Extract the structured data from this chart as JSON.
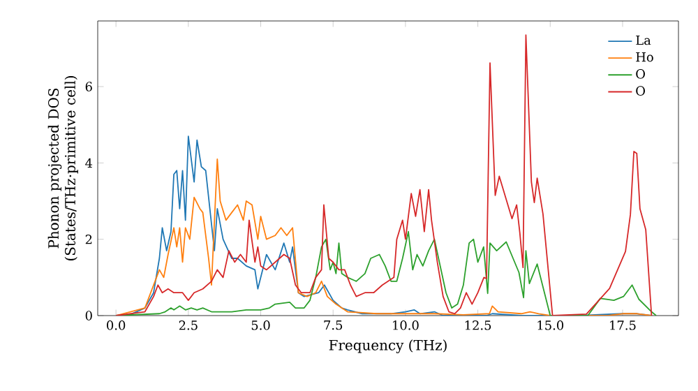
{
  "chart_data": {
    "type": "line",
    "xlabel": "Frequency (THz)",
    "ylabel": "Phonon projected DOS (States/THz·primitive cell)",
    "xlim": [
      -0.63,
      19.43
    ],
    "ylim": [
      0,
      7.72
    ],
    "xticks": [
      {
        "value": 0,
        "label": "0.0"
      },
      {
        "value": 2.5,
        "label": "2.5"
      },
      {
        "value": 5,
        "label": "5.0"
      },
      {
        "value": 7.5,
        "label": "7.5"
      },
      {
        "value": 10,
        "label": "10.0"
      },
      {
        "value": 12.5,
        "label": "12.5"
      },
      {
        "value": 15,
        "label": "15.0"
      },
      {
        "value": 17.5,
        "label": "17.5"
      }
    ],
    "yticks": [
      0,
      2,
      4,
      6
    ],
    "grid": false,
    "legend": "top right",
    "marker": "none",
    "line_style": "solid",
    "series": [
      {
        "name": "La",
        "color": "#1f77b4",
        "x": [
          0,
          0.5,
          1.0,
          1.3,
          1.5,
          1.6,
          1.75,
          1.9,
          2.0,
          2.1,
          2.2,
          2.3,
          2.4,
          2.5,
          2.7,
          2.8,
          2.95,
          3.1,
          3.4,
          3.5,
          3.7,
          4.0,
          4.2,
          4.5,
          4.8,
          4.9,
          5.2,
          5.5,
          5.8,
          6.0,
          6.1,
          6.2,
          6.3,
          6.5,
          7.0,
          7.2,
          7.5,
          7.8,
          8.0,
          8.5,
          9.5,
          10.0,
          10.3,
          10.5,
          11.0,
          11.3,
          12.8,
          13.0,
          14.0,
          16.0,
          17.5,
          18.0,
          18.5
        ],
        "values": [
          0,
          0.03,
          0.2,
          0.6,
          1.5,
          2.3,
          1.7,
          2.2,
          3.7,
          3.8,
          2.8,
          3.8,
          2.5,
          4.7,
          3.5,
          4.6,
          3.9,
          3.8,
          1.7,
          2.8,
          2.0,
          1.5,
          1.5,
          1.3,
          1.2,
          0.7,
          1.6,
          1.2,
          1.9,
          1.4,
          1.8,
          1.2,
          0.6,
          0.5,
          0.6,
          0.8,
          0.4,
          0.2,
          0.15,
          0.05,
          0.05,
          0.1,
          0.15,
          0.05,
          0.1,
          0,
          0,
          0.05,
          0,
          0,
          0.05,
          0.05,
          0
        ]
      },
      {
        "name": "Ho",
        "color": "#ff7f0e",
        "x": [
          0,
          1.0,
          1.3,
          1.5,
          1.65,
          1.8,
          2.0,
          2.1,
          2.2,
          2.3,
          2.4,
          2.55,
          2.7,
          2.9,
          3.0,
          3.2,
          3.3,
          3.5,
          3.6,
          3.8,
          4.0,
          4.2,
          4.4,
          4.5,
          4.7,
          4.9,
          5.0,
          5.2,
          5.5,
          5.7,
          5.9,
          6.1,
          6.3,
          6.6,
          6.9,
          7.1,
          7.3,
          7.6,
          8.0,
          9.0,
          10.0,
          11.0,
          12.0,
          12.9,
          13.0,
          13.2,
          14.0,
          14.3,
          14.6,
          15.0,
          17.0,
          17.5,
          18.0,
          18.5
        ],
        "values": [
          0,
          0.2,
          0.8,
          1.2,
          1.0,
          1.6,
          2.3,
          1.8,
          2.3,
          1.4,
          2.3,
          2.0,
          3.1,
          2.8,
          2.7,
          1.5,
          0.8,
          4.1,
          3.0,
          2.5,
          2.7,
          2.9,
          2.5,
          3.0,
          2.9,
          2.0,
          2.6,
          2.0,
          2.1,
          2.3,
          2.1,
          2.3,
          0.6,
          0.5,
          0.6,
          0.9,
          0.5,
          0.3,
          0.1,
          0.05,
          0.05,
          0.05,
          0.02,
          0.05,
          0.25,
          0.1,
          0.05,
          0.1,
          0.05,
          0,
          0,
          0.05,
          0.05,
          0
        ]
      },
      {
        "name": "O",
        "color": "#2ca02c",
        "x": [
          0,
          1.5,
          1.7,
          1.9,
          2.0,
          2.2,
          2.4,
          2.6,
          2.8,
          3.0,
          3.3,
          3.6,
          4.0,
          4.5,
          5.0,
          5.3,
          5.5,
          6.0,
          6.2,
          6.5,
          6.7,
          6.9,
          7.1,
          7.25,
          7.4,
          7.5,
          7.6,
          7.7,
          7.8,
          8.0,
          8.3,
          8.6,
          8.8,
          9.1,
          9.3,
          9.5,
          9.7,
          9.9,
          10.1,
          10.25,
          10.4,
          10.6,
          10.8,
          11.0,
          11.2,
          11.4,
          11.6,
          11.8,
          12.0,
          12.2,
          12.35,
          12.5,
          12.7,
          12.84,
          12.92,
          13.15,
          13.48,
          13.92,
          14.08,
          14.16,
          14.28,
          14.55,
          15.0,
          16.3,
          16.73,
          17.2,
          17.53,
          17.83,
          18.06,
          18.5,
          18.66
        ],
        "values": [
          0,
          0.05,
          0.1,
          0.2,
          0.15,
          0.25,
          0.15,
          0.2,
          0.15,
          0.2,
          0.1,
          0.1,
          0.1,
          0.15,
          0.15,
          0.2,
          0.3,
          0.35,
          0.2,
          0.2,
          0.4,
          1.0,
          1.8,
          2.0,
          1.2,
          1.4,
          1.1,
          1.9,
          1.1,
          1.0,
          0.9,
          1.1,
          1.5,
          1.6,
          1.3,
          0.9,
          0.9,
          1.5,
          2.2,
          1.2,
          1.6,
          1.3,
          1.7,
          2.0,
          1.3,
          0.6,
          0.2,
          0.3,
          0.8,
          1.9,
          2.0,
          1.4,
          1.8,
          0.58,
          1.9,
          1.7,
          1.93,
          1.13,
          0.47,
          1.7,
          0.84,
          1.35,
          0,
          0,
          0.45,
          0.4,
          0.5,
          0.8,
          0.43,
          0.1,
          0
        ]
      },
      {
        "name": "O",
        "color": "#d62728",
        "x": [
          0,
          1.0,
          1.3,
          1.45,
          1.6,
          1.8,
          2.0,
          2.3,
          2.5,
          2.7,
          3.0,
          3.3,
          3.5,
          3.7,
          3.9,
          4.1,
          4.3,
          4.5,
          4.6,
          4.8,
          4.9,
          5.0,
          5.2,
          5.5,
          5.8,
          6.0,
          6.2,
          6.4,
          6.7,
          6.9,
          7.1,
          7.18,
          7.35,
          7.5,
          7.7,
          7.9,
          8.1,
          8.3,
          8.6,
          8.9,
          9.2,
          9.4,
          9.6,
          9.7,
          9.9,
          10.0,
          10.2,
          10.35,
          10.5,
          10.65,
          10.8,
          10.9,
          11.1,
          11.3,
          11.5,
          11.7,
          11.9,
          12.1,
          12.3,
          12.5,
          12.71,
          12.8,
          12.92,
          13.1,
          13.24,
          13.68,
          13.84,
          13.95,
          14.06,
          14.16,
          14.35,
          14.45,
          14.55,
          14.75,
          15.08,
          16.25,
          17.05,
          17.6,
          17.77,
          17.89,
          17.99,
          18.1,
          18.3,
          18.5
        ],
        "values": [
          0,
          0.1,
          0.5,
          0.8,
          0.6,
          0.7,
          0.6,
          0.6,
          0.4,
          0.6,
          0.7,
          0.9,
          1.2,
          1.0,
          1.7,
          1.4,
          1.6,
          1.4,
          2.5,
          1.4,
          1.8,
          1.3,
          1.2,
          1.4,
          1.6,
          1.5,
          0.8,
          0.6,
          0.6,
          1.0,
          1.2,
          2.9,
          1.5,
          1.4,
          1.2,
          1.2,
          0.8,
          0.5,
          0.6,
          0.6,
          0.8,
          0.9,
          1.0,
          2.0,
          2.5,
          2.0,
          3.2,
          2.6,
          3.3,
          2.2,
          3.3,
          2.5,
          1.4,
          0.5,
          0.1,
          0.05,
          0.2,
          0.6,
          0.3,
          0.6,
          1.0,
          0.97,
          6.62,
          3.15,
          3.65,
          2.54,
          2.9,
          2.17,
          1.26,
          7.35,
          3.5,
          2.96,
          3.6,
          2.66,
          0,
          0.04,
          0.71,
          1.68,
          2.65,
          4.3,
          4.25,
          2.8,
          2.25,
          0
        ]
      }
    ]
  }
}
